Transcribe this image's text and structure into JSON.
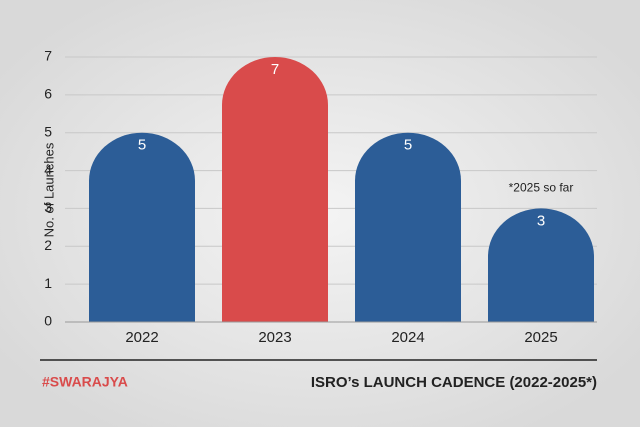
{
  "chart_data": {
    "type": "bar",
    "title": "ISRO’s LAUNCH CADENCE (2022-2025*)",
    "brand": "#SWARAJYA",
    "y_label": "No. of Launches",
    "annotation": "*2025 so far",
    "categories": [
      "2022",
      "2023",
      "2024",
      "2025"
    ],
    "values": [
      5,
      7,
      5,
      3
    ],
    "colors": [
      "#2c5d97",
      "#d94b4b",
      "#2c5d97",
      "#2c5d97"
    ],
    "ylim": [
      0,
      7
    ],
    "yticks": [
      0,
      1,
      2,
      3,
      4,
      5,
      6,
      7
    ],
    "grid": true
  }
}
